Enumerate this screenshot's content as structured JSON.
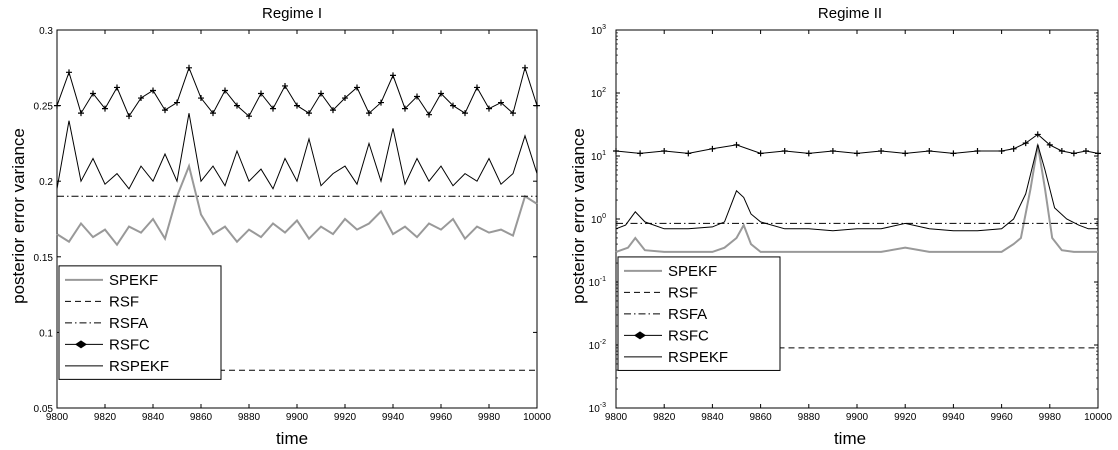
{
  "chart_data": [
    {
      "type": "line",
      "title": "Regime I",
      "xlabel": "time",
      "ylabel": "posterior error variance",
      "xscale": "linear",
      "yscale": "linear",
      "xlim": [
        9800,
        10000
      ],
      "ylim": [
        0.05,
        0.3
      ],
      "xticks": [
        "9800",
        "9820",
        "9840",
        "9860",
        "9880",
        "9900",
        "9920",
        "9940",
        "9960",
        "9980",
        "10000"
      ],
      "yticks": [
        "0.05",
        "0.1",
        "0.15",
        "0.2",
        "0.25",
        "0.3"
      ],
      "legend_position": "lower-left",
      "series": [
        {
          "name": "SPEKF",
          "style": "solid",
          "color": "#999999",
          "x": [
            9800,
            9805,
            9810,
            9815,
            9820,
            9825,
            9830,
            9835,
            9840,
            9845,
            9850,
            9855,
            9860,
            9865,
            9870,
            9875,
            9880,
            9885,
            9890,
            9895,
            9900,
            9905,
            9910,
            9915,
            9920,
            9925,
            9930,
            9935,
            9940,
            9945,
            9950,
            9955,
            9960,
            9965,
            9970,
            9975,
            9980,
            9985,
            9990,
            9995,
            10000
          ],
          "y": [
            0.165,
            0.16,
            0.172,
            0.163,
            0.168,
            0.158,
            0.17,
            0.166,
            0.175,
            0.162,
            0.19,
            0.21,
            0.178,
            0.165,
            0.17,
            0.16,
            0.168,
            0.163,
            0.172,
            0.166,
            0.174,
            0.162,
            0.17,
            0.165,
            0.175,
            0.168,
            0.172,
            0.18,
            0.165,
            0.17,
            0.163,
            0.172,
            0.168,
            0.175,
            0.162,
            0.17,
            0.166,
            0.168,
            0.164,
            0.19,
            0.185
          ]
        },
        {
          "name": "RSF",
          "style": "dashed",
          "color": "#000000",
          "x": [
            9855,
            10000
          ],
          "y": [
            0.075,
            0.075
          ]
        },
        {
          "name": "RSFA",
          "style": "dashdot",
          "color": "#000000",
          "x": [
            9800,
            10000
          ],
          "y": [
            0.19,
            0.19
          ]
        },
        {
          "name": "RSFC",
          "style": "solid-marker",
          "color": "#000000",
          "x": [
            9800,
            9805,
            9810,
            9815,
            9820,
            9825,
            9830,
            9835,
            9840,
            9845,
            9850,
            9855,
            9860,
            9865,
            9870,
            9875,
            9880,
            9885,
            9890,
            9895,
            9900,
            9905,
            9910,
            9915,
            9920,
            9925,
            9930,
            9935,
            9940,
            9945,
            9950,
            9955,
            9960,
            9965,
            9970,
            9975,
            9980,
            9985,
            9990,
            9995,
            10000
          ],
          "y": [
            0.25,
            0.272,
            0.245,
            0.258,
            0.248,
            0.262,
            0.243,
            0.255,
            0.26,
            0.247,
            0.252,
            0.275,
            0.255,
            0.245,
            0.26,
            0.25,
            0.243,
            0.258,
            0.248,
            0.263,
            0.25,
            0.245,
            0.258,
            0.247,
            0.255,
            0.262,
            0.245,
            0.252,
            0.27,
            0.248,
            0.256,
            0.244,
            0.258,
            0.25,
            0.245,
            0.262,
            0.248,
            0.252,
            0.245,
            0.275,
            0.25
          ]
        },
        {
          "name": "RSPEKF",
          "style": "solid",
          "color": "#000000",
          "x": [
            9800,
            9805,
            9810,
            9815,
            9820,
            9825,
            9830,
            9835,
            9840,
            9845,
            9850,
            9855,
            9860,
            9865,
            9870,
            9875,
            9880,
            9885,
            9890,
            9895,
            9900,
            9905,
            9910,
            9915,
            9920,
            9925,
            9930,
            9935,
            9940,
            9945,
            9950,
            9955,
            9960,
            9965,
            9970,
            9975,
            9980,
            9985,
            9990,
            9995,
            10000
          ],
          "y": [
            0.195,
            0.24,
            0.2,
            0.215,
            0.198,
            0.205,
            0.195,
            0.21,
            0.2,
            0.218,
            0.2,
            0.245,
            0.2,
            0.21,
            0.197,
            0.22,
            0.2,
            0.208,
            0.195,
            0.215,
            0.2,
            0.228,
            0.197,
            0.205,
            0.21,
            0.198,
            0.225,
            0.2,
            0.235,
            0.198,
            0.215,
            0.2,
            0.21,
            0.197,
            0.205,
            0.2,
            0.215,
            0.198,
            0.205,
            0.23,
            0.205
          ]
        }
      ]
    },
    {
      "type": "line",
      "title": "Regime II",
      "xlabel": "time",
      "ylabel": "posterior error variance",
      "xscale": "linear",
      "yscale": "log",
      "xlim": [
        9800,
        10000
      ],
      "ylim": [
        0.001,
        1000
      ],
      "xticks": [
        "9800",
        "9820",
        "9840",
        "9860",
        "9880",
        "9900",
        "9920",
        "9940",
        "9960",
        "9980",
        "10000"
      ],
      "yticks": [
        "10",
        "10",
        "10",
        "10",
        "10",
        "10",
        "10"
      ],
      "ytick_exponents": [
        "-3",
        "-2",
        "-1",
        "0",
        "1",
        "2",
        "3"
      ],
      "legend_position": "lower-left",
      "series": [
        {
          "name": "SPEKF",
          "style": "solid",
          "color": "#999999",
          "x": [
            9800,
            9805,
            9808,
            9812,
            9820,
            9830,
            9840,
            9845,
            9850,
            9853,
            9856,
            9860,
            9870,
            9880,
            9890,
            9900,
            9910,
            9920,
            9930,
            9940,
            9950,
            9960,
            9965,
            9968,
            9972,
            9975,
            9978,
            9981,
            9985,
            9990,
            9995,
            10000
          ],
          "y": [
            0.3,
            0.35,
            0.5,
            0.32,
            0.3,
            0.3,
            0.3,
            0.35,
            0.5,
            0.8,
            0.4,
            0.3,
            0.3,
            0.3,
            0.3,
            0.3,
            0.3,
            0.35,
            0.3,
            0.3,
            0.3,
            0.3,
            0.4,
            0.5,
            3,
            15,
            3,
            0.5,
            0.32,
            0.3,
            0.3,
            0.3
          ]
        },
        {
          "name": "RSF",
          "style": "dashed",
          "color": "#000000",
          "x": [
            9855,
            10000
          ],
          "y": [
            0.009,
            0.009
          ]
        },
        {
          "name": "RSFA",
          "style": "dashdot",
          "color": "#000000",
          "x": [
            9800,
            10000
          ],
          "y": [
            0.85,
            0.85
          ]
        },
        {
          "name": "RSFC",
          "style": "solid-marker",
          "color": "#000000",
          "x": [
            9800,
            9810,
            9820,
            9830,
            9840,
            9850,
            9860,
            9870,
            9880,
            9890,
            9900,
            9910,
            9920,
            9930,
            9940,
            9950,
            9960,
            9965,
            9970,
            9975,
            9980,
            9985,
            9990,
            9995,
            10000
          ],
          "y": [
            12,
            11,
            12,
            11,
            13,
            15,
            11,
            12,
            11,
            12,
            11,
            12,
            11,
            12,
            11,
            12,
            12,
            13,
            16,
            22,
            15,
            12,
            11,
            12,
            11
          ]
        },
        {
          "name": "RSPEKF",
          "style": "solid",
          "color": "#000000",
          "x": [
            9800,
            9804,
            9808,
            9812,
            9820,
            9830,
            9840,
            9845,
            9850,
            9853,
            9856,
            9860,
            9870,
            9880,
            9890,
            9900,
            9910,
            9920,
            9930,
            9940,
            9950,
            9960,
            9965,
            9970,
            9975,
            9978,
            9982,
            9987,
            9992,
            9996,
            10000
          ],
          "y": [
            0.7,
            0.8,
            1.3,
            0.9,
            0.7,
            0.7,
            0.75,
            0.9,
            2.8,
            2.2,
            1.2,
            0.9,
            0.7,
            0.7,
            0.65,
            0.7,
            0.7,
            0.85,
            0.7,
            0.65,
            0.65,
            0.7,
            1.0,
            2.5,
            15,
            6,
            1.5,
            1.0,
            0.8,
            0.7,
            0.7
          ]
        }
      ]
    }
  ]
}
